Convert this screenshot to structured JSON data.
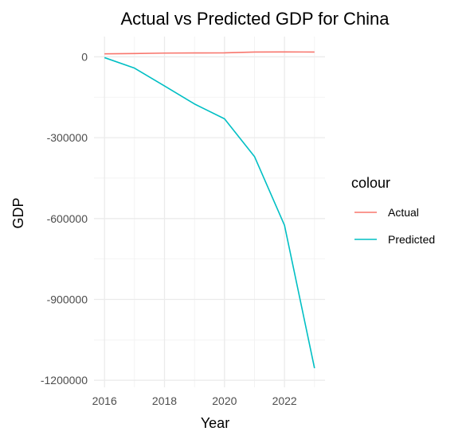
{
  "chart_data": {
    "type": "line",
    "title": "Actual vs Predicted GDP for China",
    "xlabel": "Year",
    "ylabel": "GDP",
    "x": [
      2016,
      2017,
      2018,
      2019,
      2020,
      2021,
      2022,
      2023
    ],
    "x_ticks": [
      2016,
      2018,
      2020,
      2022
    ],
    "x_tick_labels": [
      "2016",
      "2018",
      "2020",
      "2022"
    ],
    "y_ticks": [
      0,
      -300000,
      -600000,
      -900000,
      -1200000
    ],
    "y_tick_labels": [
      "0",
      "-300000",
      "-600000",
      "-900000",
      "-1200000"
    ],
    "xlim": [
      2015.65,
      2023.35
    ],
    "ylim": [
      -1226000,
      75000
    ],
    "grid": true,
    "legend_title": "colour",
    "legend_position": "right",
    "series": [
      {
        "name": "Actual",
        "color": "#F8766D",
        "values": [
          11000,
          12000,
          13800,
          14300,
          14700,
          17700,
          17900,
          17800
        ]
      },
      {
        "name": "Predicted",
        "color": "#00BFC4",
        "values": [
          -3000,
          -42000,
          -108000,
          -175000,
          -230000,
          -370000,
          -625000,
          -1155000
        ]
      }
    ]
  }
}
